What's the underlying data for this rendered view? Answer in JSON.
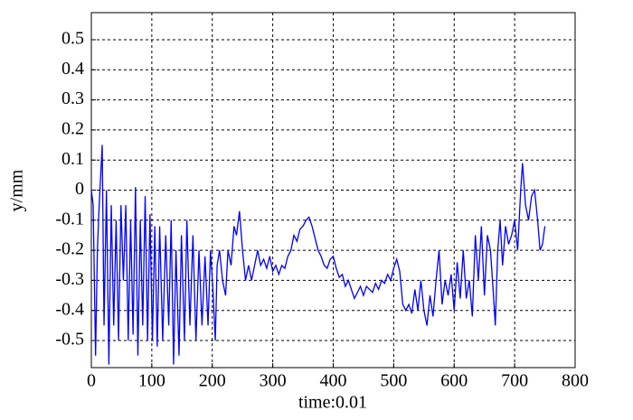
{
  "chart_data": {
    "type": "line",
    "xlabel": "time:0.01",
    "ylabel": "y/mm",
    "xlim": [
      0,
      800
    ],
    "xticks": [
      0,
      100,
      200,
      300,
      400,
      500,
      600,
      700,
      800
    ],
    "ylim": [
      -0.59,
      0.59
    ],
    "yticks": [
      -0.5,
      -0.4,
      -0.3,
      -0.2,
      -0.1,
      0,
      0.1,
      0.2,
      0.3,
      0.4,
      0.5
    ],
    "grid": true,
    "series": [
      {
        "color": "#0000ff",
        "x": [
          0,
          3,
          7,
          10,
          13,
          18,
          21,
          25,
          29,
          33,
          37,
          41,
          45,
          49,
          53,
          57,
          61,
          65,
          69,
          73,
          77,
          81,
          85,
          89,
          93,
          97,
          101,
          105,
          109,
          113,
          118,
          123,
          128,
          132,
          136,
          140,
          145,
          149,
          154,
          158,
          163,
          168,
          173,
          178,
          183,
          188,
          193,
          197,
          201,
          205,
          208,
          212,
          217,
          222,
          226,
          231,
          236,
          240,
          245,
          250,
          255,
          260,
          265,
          270,
          275,
          280,
          285,
          290,
          295,
          300,
          305,
          310,
          315,
          320,
          325,
          330,
          335,
          340,
          345,
          350,
          355,
          360,
          365,
          370,
          375,
          380,
          385,
          390,
          395,
          400,
          405,
          410,
          415,
          420,
          425,
          430,
          435,
          440,
          445,
          450,
          455,
          460,
          465,
          470,
          475,
          480,
          485,
          490,
          495,
          500,
          505,
          510,
          515,
          520,
          525,
          530,
          535,
          540,
          545,
          550,
          555,
          560,
          565,
          570,
          575,
          580,
          585,
          590,
          595,
          600,
          605,
          610,
          615,
          620,
          625,
          630,
          635,
          640,
          645,
          650,
          655,
          660,
          665,
          668,
          672,
          676,
          680,
          685,
          690,
          695,
          700,
          705,
          710,
          713,
          718,
          723,
          728,
          733,
          738,
          742,
          746,
          750
        ],
        "values": [
          0,
          -0.05,
          -0.55,
          -0.2,
          -0.05,
          0.15,
          -0.45,
          0.0,
          -0.58,
          -0.05,
          -0.45,
          -0.1,
          -0.5,
          -0.05,
          -0.3,
          -0.05,
          -0.5,
          -0.1,
          -0.48,
          0.01,
          -0.55,
          -0.1,
          -0.45,
          -0.02,
          -0.5,
          -0.08,
          -0.5,
          -0.12,
          -0.52,
          -0.12,
          -0.5,
          -0.15,
          -0.45,
          -0.1,
          -0.58,
          -0.2,
          -0.55,
          -0.15,
          -0.5,
          -0.1,
          -0.45,
          -0.15,
          -0.5,
          -0.2,
          -0.45,
          -0.22,
          -0.45,
          -0.2,
          -0.33,
          -0.5,
          -0.25,
          -0.2,
          -0.3,
          -0.35,
          -0.2,
          -0.25,
          -0.12,
          -0.15,
          -0.07,
          -0.2,
          -0.3,
          -0.25,
          -0.3,
          -0.25,
          -0.2,
          -0.25,
          -0.23,
          -0.26,
          -0.22,
          -0.27,
          -0.25,
          -0.28,
          -0.25,
          -0.26,
          -0.22,
          -0.2,
          -0.15,
          -0.17,
          -0.13,
          -0.12,
          -0.1,
          -0.09,
          -0.12,
          -0.16,
          -0.2,
          -0.22,
          -0.25,
          -0.26,
          -0.23,
          -0.22,
          -0.26,
          -0.29,
          -0.28,
          -0.32,
          -0.3,
          -0.33,
          -0.36,
          -0.34,
          -0.32,
          -0.35,
          -0.32,
          -0.33,
          -0.34,
          -0.31,
          -0.33,
          -0.3,
          -0.31,
          -0.28,
          -0.3,
          -0.26,
          -0.23,
          -0.27,
          -0.38,
          -0.4,
          -0.38,
          -0.41,
          -0.33,
          -0.4,
          -0.3,
          -0.4,
          -0.45,
          -0.35,
          -0.42,
          -0.3,
          -0.2,
          -0.38,
          -0.3,
          -0.35,
          -0.28,
          -0.4,
          -0.24,
          -0.36,
          -0.2,
          -0.36,
          -0.3,
          -0.42,
          -0.15,
          -0.3,
          -0.12,
          -0.35,
          -0.15,
          -0.2,
          -0.35,
          -0.45,
          -0.2,
          -0.1,
          -0.25,
          -0.12,
          -0.18,
          -0.15,
          -0.1,
          -0.2,
          0.0,
          0.09,
          -0.05,
          -0.1,
          -0.02,
          0.0,
          -0.1,
          -0.2,
          -0.18,
          -0.12
        ]
      }
    ]
  }
}
